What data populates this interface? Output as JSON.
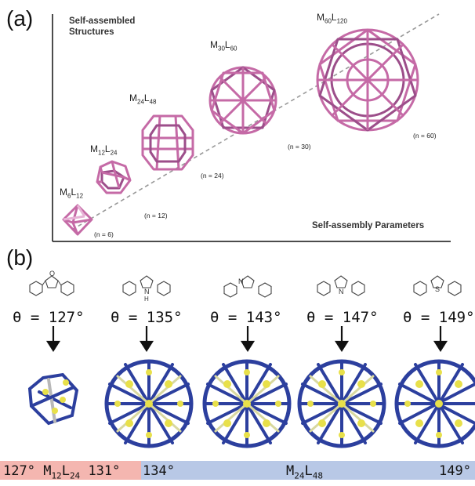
{
  "panel_a": {
    "label": "(a)",
    "ylabel_line1": "Self-assembled",
    "ylabel_line2": "Structures",
    "xlabel": "Self-assembly Parameters",
    "structures": [
      {
        "M": "6",
        "L": "12",
        "n": "(n = 6)"
      },
      {
        "M": "12",
        "L": "24",
        "n": "(n = 12)"
      },
      {
        "M": "24",
        "L": "48",
        "n": "(n = 24)"
      },
      {
        "M": "30",
        "L": "60",
        "n": "(n = 30)"
      },
      {
        "M": "60",
        "L": "120",
        "n": "(n = 60)"
      }
    ]
  },
  "panel_b": {
    "label": "(b)",
    "ligands": [
      {
        "angle": "θ = 127°",
        "heteroatom": "O"
      },
      {
        "angle": "θ = 135°",
        "heteroatom": "N\nH"
      },
      {
        "angle": "θ = 143°",
        "heteroatom": "N"
      },
      {
        "angle": "θ = 147°",
        "heteroatom": "N",
        "substituent": "CH3"
      },
      {
        "angle": "θ = 149°",
        "heteroatom": "S"
      }
    ],
    "bar": {
      "left_start": "127°",
      "left_M": "12",
      "left_L": "24",
      "left_end": "131°",
      "right_start": "134°",
      "right_M": "24",
      "right_L": "48",
      "right_end": "149°",
      "left_color": "#f4b6b0",
      "right_color": "#b8c8e6"
    }
  },
  "colors": {
    "cage_pink": "#c56aa6",
    "cage_dark": "#7a3b72",
    "mof_blue": "#2c3f9e",
    "mof_yellow": "#e8e04a",
    "arrow": "#111111"
  }
}
